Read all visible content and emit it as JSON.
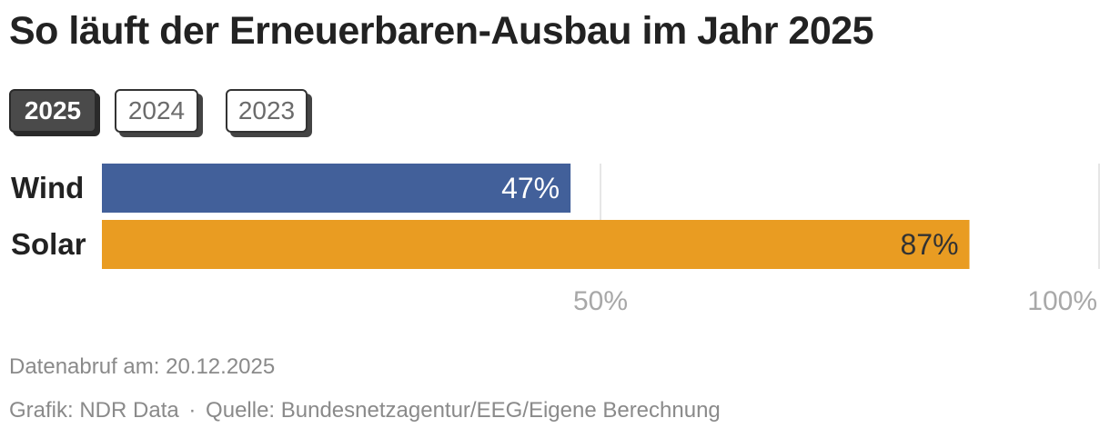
{
  "title": "So läuft der Erneuerbaren-Ausbau im Jahr 2025",
  "tabs": [
    {
      "label": "2025",
      "active": true
    },
    {
      "label": "2024",
      "active": false
    },
    {
      "label": "2023",
      "active": false
    }
  ],
  "colors": {
    "wind": "#42609a",
    "solar": "#e99c22",
    "grid": "#dddddd",
    "tick_text": "#a8a8a8",
    "wind_label_text": "#ffffff",
    "solar_label_text": "#333333"
  },
  "chart_data": {
    "type": "bar",
    "orientation": "horizontal",
    "categories": [
      "Wind",
      "Solar"
    ],
    "values": [
      47,
      87
    ],
    "value_labels": [
      "47%",
      "87%"
    ],
    "xlim": [
      0,
      100
    ],
    "ticks": [
      {
        "value": 50,
        "label": "50%"
      },
      {
        "value": 100,
        "label": "100%"
      }
    ],
    "grid": true
  },
  "footer": {
    "date_text": "Datenabruf am: 20.12.2025",
    "credit": "Grafik: NDR Data",
    "separator": "·",
    "source": "Quelle: Bundesnetzagentur/EEG/Eigene Berechnung"
  }
}
